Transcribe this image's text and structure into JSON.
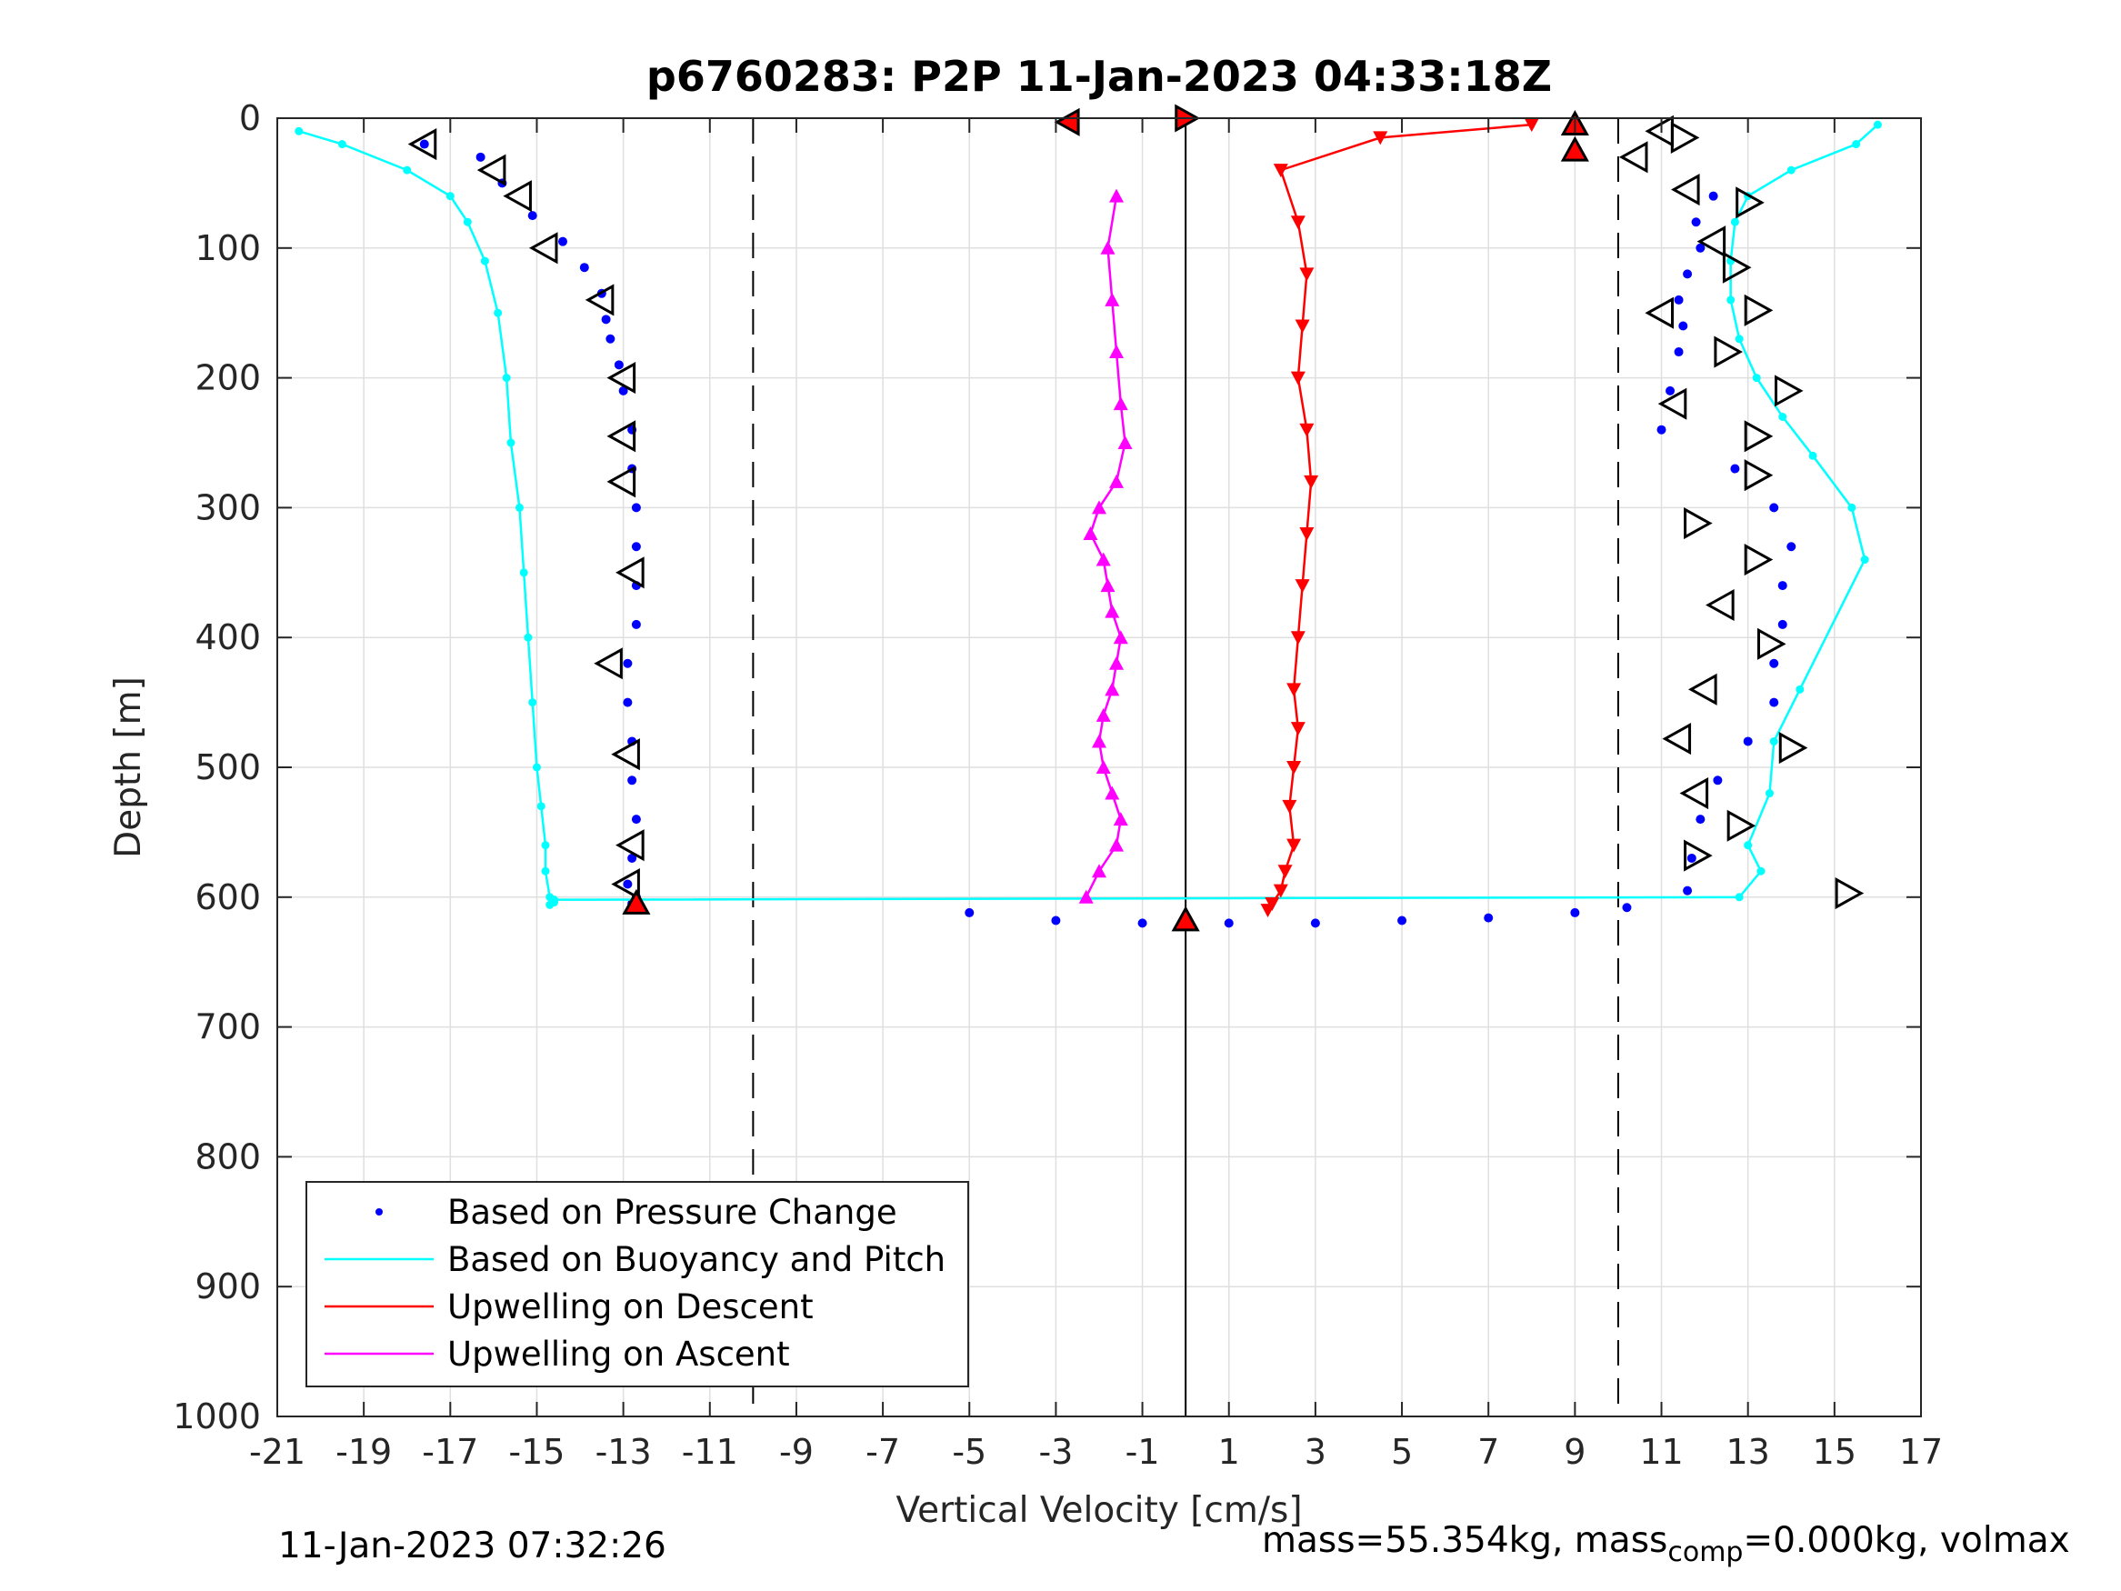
{
  "chart_data": {
    "type": "scatter",
    "title": "p6760283: P2P 11-Jan-2023 04:33:18Z",
    "xlabel": "Vertical Velocity [cm/s]",
    "ylabel": "Depth [m]",
    "xlim": [
      -21,
      17
    ],
    "ylim": [
      0,
      1000
    ],
    "y_reversed": true,
    "xticks": [
      -21,
      -19,
      -17,
      -15,
      -13,
      -11,
      -9,
      -7,
      -5,
      -3,
      -1,
      1,
      3,
      5,
      7,
      9,
      11,
      13,
      15,
      17
    ],
    "xtick_labels": [
      "-21",
      "-19",
      "-17",
      "-15",
      "-13",
      "-11",
      "-9",
      "-7",
      "-5",
      "-3",
      "-1",
      "1",
      "3",
      "5",
      "7",
      "9",
      "11",
      "13",
      "15",
      "17"
    ],
    "yticks": [
      0,
      100,
      200,
      300,
      400,
      500,
      600,
      700,
      800,
      900,
      1000
    ],
    "ytick_labels": [
      "0",
      "100",
      "200",
      "300",
      "400",
      "500",
      "600",
      "700",
      "800",
      "900",
      "1000"
    ],
    "grid": true,
    "legend_position": "bottom-left",
    "reference_lines": {
      "dashed_x": [
        -10,
        10
      ],
      "solid_x": [
        0
      ]
    },
    "series": [
      {
        "name": "Based on Pressure Change",
        "color": "#0000ff",
        "marker": "dot",
        "x": [
          -17.6,
          -16.3,
          -15.8,
          -15.1,
          -14.4,
          -13.9,
          -13.5,
          -13.4,
          -13.3,
          -13.1,
          -13.0,
          -12.8,
          -12.8,
          -12.7,
          -12.7,
          -12.7,
          -12.7,
          -12.9,
          -12.9,
          -12.8,
          -12.8,
          -12.7,
          -12.8,
          -12.9,
          -12.8,
          -12.7,
          -5.0,
          -3.0,
          -1.0,
          0.0,
          1.0,
          3.0,
          5.0,
          7.0,
          9.0,
          10.2,
          11.6,
          11.7,
          11.9,
          12.3,
          13.0,
          13.6,
          13.6,
          13.8,
          13.8,
          14.0,
          13.6,
          12.7,
          11.0,
          11.2,
          11.4,
          11.5,
          11.4,
          11.6,
          11.9,
          11.8,
          12.2
        ],
        "y": [
          20,
          30,
          50,
          75,
          95,
          115,
          135,
          155,
          170,
          190,
          210,
          240,
          270,
          300,
          330,
          360,
          390,
          420,
          450,
          480,
          510,
          540,
          570,
          590,
          605,
          600,
          612,
          618,
          620,
          620,
          620,
          620,
          618,
          616,
          612,
          608,
          595,
          570,
          540,
          510,
          480,
          450,
          420,
          390,
          360,
          330,
          300,
          270,
          240,
          210,
          180,
          160,
          140,
          120,
          100,
          80,
          60
        ]
      },
      {
        "name": "Based on Buoyancy and Pitch",
        "color": "#00ffff",
        "marker": "line",
        "x": [
          -20.5,
          -19.5,
          -18.0,
          -17.0,
          -16.6,
          -16.2,
          -15.9,
          -15.7,
          -15.6,
          -15.4,
          -15.3,
          -15.2,
          -15.1,
          -15.0,
          -14.9,
          -14.8,
          -14.8,
          -14.7,
          -14.7,
          -14.6,
          -14.6,
          12.8,
          13.3,
          13.0,
          13.5,
          13.6,
          14.2,
          15.7,
          15.4,
          14.5,
          13.8,
          13.2,
          12.8,
          12.6,
          12.6,
          12.7,
          13.0,
          14.0,
          15.5,
          16.0
        ],
        "y": [
          10,
          20,
          40,
          60,
          80,
          110,
          150,
          200,
          250,
          300,
          350,
          400,
          450,
          500,
          530,
          560,
          580,
          600,
          606,
          604,
          602,
          600,
          580,
          560,
          520,
          480,
          440,
          340,
          300,
          260,
          230,
          200,
          170,
          140,
          110,
          80,
          60,
          40,
          20,
          5
        ]
      },
      {
        "name": "Upwelling on Descent",
        "color": "#ff0000",
        "marker": "triangle-down",
        "x": [
          8.0,
          4.5,
          2.2,
          2.6,
          2.8,
          2.7,
          2.6,
          2.8,
          2.9,
          2.8,
          2.7,
          2.6,
          2.5,
          2.6,
          2.5,
          2.4,
          2.5,
          2.3,
          2.2,
          2.0,
          1.9
        ],
        "y": [
          5,
          15,
          40,
          80,
          120,
          160,
          200,
          240,
          280,
          320,
          360,
          400,
          440,
          470,
          500,
          530,
          560,
          580,
          595,
          605,
          610
        ]
      },
      {
        "name": "Upwelling on Ascent",
        "color": "#ff00ff",
        "marker": "triangle-up",
        "x": [
          -2.3,
          -2.0,
          -1.6,
          -1.5,
          -1.7,
          -1.9,
          -2.0,
          -1.9,
          -1.7,
          -1.6,
          -1.5,
          -1.7,
          -1.8,
          -1.9,
          -2.2,
          -2.0,
          -1.6,
          -1.4,
          -1.5,
          -1.6,
          -1.7,
          -1.8,
          -1.6
        ],
        "y": [
          600,
          580,
          560,
          540,
          520,
          500,
          480,
          460,
          440,
          420,
          400,
          380,
          360,
          340,
          320,
          300,
          280,
          250,
          220,
          180,
          140,
          100,
          60
        ]
      }
    ],
    "turn_markers": [
      {
        "x": -17.6,
        "y": 20,
        "direction": "left"
      },
      {
        "x": -16.0,
        "y": 40,
        "direction": "left"
      },
      {
        "x": -15.4,
        "y": 60,
        "direction": "left"
      },
      {
        "x": -14.8,
        "y": 100,
        "direction": "left"
      },
      {
        "x": -13.5,
        "y": 140,
        "direction": "left"
      },
      {
        "x": -13.0,
        "y": 200,
        "direction": "left"
      },
      {
        "x": -13.0,
        "y": 245,
        "direction": "left"
      },
      {
        "x": -13.0,
        "y": 280,
        "direction": "left"
      },
      {
        "x": -12.8,
        "y": 350,
        "direction": "left"
      },
      {
        "x": -13.3,
        "y": 420,
        "direction": "left"
      },
      {
        "x": -12.9,
        "y": 490,
        "direction": "left"
      },
      {
        "x": -12.8,
        "y": 560,
        "direction": "left"
      },
      {
        "x": -12.9,
        "y": 590,
        "direction": "left"
      },
      {
        "x": 11.0,
        "y": 10,
        "direction": "left"
      },
      {
        "x": 11.5,
        "y": 15,
        "direction": "right"
      },
      {
        "x": 10.4,
        "y": 30,
        "direction": "left"
      },
      {
        "x": 11.6,
        "y": 55,
        "direction": "left"
      },
      {
        "x": 13.0,
        "y": 65,
        "direction": "right"
      },
      {
        "x": 12.2,
        "y": 95,
        "direction": "left"
      },
      {
        "x": 12.7,
        "y": 115,
        "direction": "right"
      },
      {
        "x": 11.0,
        "y": 150,
        "direction": "left"
      },
      {
        "x": 13.2,
        "y": 148,
        "direction": "right"
      },
      {
        "x": 12.5,
        "y": 180,
        "direction": "right"
      },
      {
        "x": 13.9,
        "y": 210,
        "direction": "right"
      },
      {
        "x": 11.3,
        "y": 220,
        "direction": "left"
      },
      {
        "x": 13.2,
        "y": 245,
        "direction": "right"
      },
      {
        "x": 13.2,
        "y": 275,
        "direction": "right"
      },
      {
        "x": 11.8,
        "y": 312,
        "direction": "right"
      },
      {
        "x": 13.2,
        "y": 340,
        "direction": "right"
      },
      {
        "x": 12.4,
        "y": 375,
        "direction": "left"
      },
      {
        "x": 13.5,
        "y": 405,
        "direction": "right"
      },
      {
        "x": 12.0,
        "y": 440,
        "direction": "left"
      },
      {
        "x": 11.4,
        "y": 478,
        "direction": "left"
      },
      {
        "x": 14.0,
        "y": 485,
        "direction": "right"
      },
      {
        "x": 11.8,
        "y": 520,
        "direction": "left"
      },
      {
        "x": 12.8,
        "y": 545,
        "direction": "right"
      },
      {
        "x": 11.8,
        "y": 568,
        "direction": "right"
      },
      {
        "x": 15.3,
        "y": 597,
        "direction": "right"
      }
    ],
    "red_markers": [
      {
        "x": -2.7,
        "y": 3,
        "direction": "left"
      },
      {
        "x": 0.0,
        "y": 0,
        "direction": "right"
      },
      {
        "x": 9.0,
        "y": 5,
        "direction": "up"
      },
      {
        "x": 9.0,
        "y": 25,
        "direction": "up"
      },
      {
        "x": -12.7,
        "y": 605,
        "direction": "up"
      },
      {
        "x": 0.0,
        "y": 618,
        "direction": "up"
      }
    ]
  },
  "footer": {
    "timestamp": "11-Jan-2023 07:32:26",
    "mass_text_prefix": "mass=55.354kg, mass",
    "mass_text_sub": "comp",
    "mass_text_suffix": "=0.000kg, volmax"
  }
}
